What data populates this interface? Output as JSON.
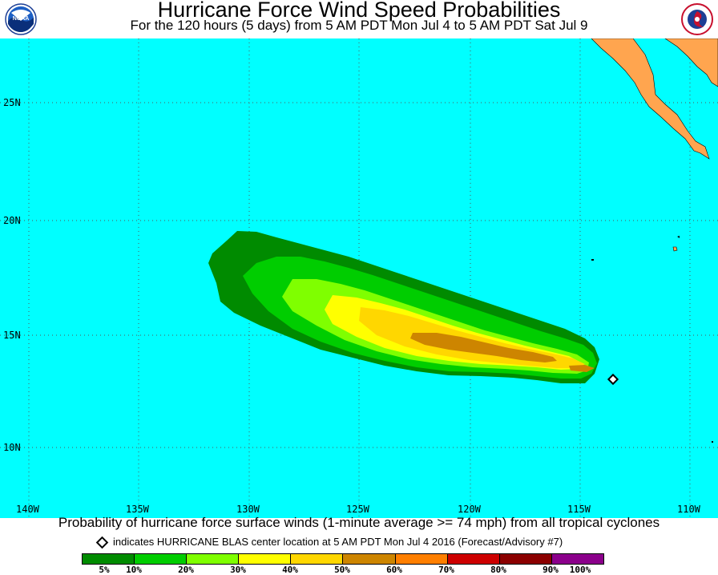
{
  "header": {
    "title": "Hurricane Force Wind Speed Probabilities",
    "subtitle": "For the 120 hours (5 days) from 5 AM PDT Mon Jul 4 to 5 AM PDT Sat Jul 9",
    "left_logo": "noaa-logo",
    "left_logo_text": "NOAA",
    "right_logo": "national-weather-service-logo"
  },
  "map": {
    "background_color": "#00ffff",
    "land_color": "#ffa54f",
    "lat_labels": [
      "25N",
      "20N",
      "15N",
      "10N"
    ],
    "lon_labels": [
      "140W",
      "135W",
      "130W",
      "125W",
      "120W",
      "115W",
      "110W"
    ],
    "storm_center": {
      "lon": -113.4,
      "lat": 12.9
    }
  },
  "footer": {
    "description": "Probability of hurricane force surface winds (1-minute average >= 74 mph) from all tropical cyclones",
    "center_note": "indicates HURRICANE BLAS center location at 5 AM PDT Mon Jul 4 2016 (Forecast/Advisory #7)"
  },
  "legend": {
    "colors": [
      "#008b00",
      "#00cd00",
      "#7fff00",
      "#ffff00",
      "#ffd700",
      "#cd8500",
      "#ff7f00",
      "#cd0000",
      "#8b0000",
      "#8b008b"
    ],
    "labels": [
      "5%",
      "10%",
      "20%",
      "30%",
      "40%",
      "50%",
      "60%",
      "70%",
      "80%",
      "90%",
      "100%"
    ]
  }
}
